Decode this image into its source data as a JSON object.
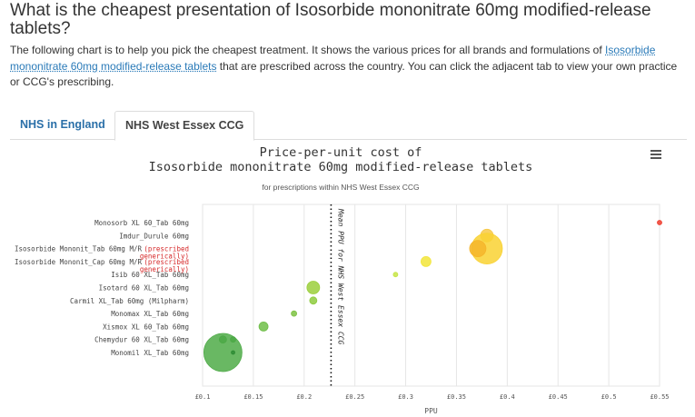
{
  "page": {
    "heading": "What is the cheapest presentation of Isosorbide mononitrate 60mg modified-release tablets?",
    "intro_before": "The following chart is to help you pick the cheapest treatment. It shows the various prices for all brands and formulations of ",
    "intro_link": "Isosorbide mononitrate 60mg modified-release tablets",
    "intro_after": " that are prescribed across the country. You can click the adjacent tab to view your own practice or CCG's prescribing."
  },
  "tabs": [
    {
      "label": "NHS in England",
      "active": false
    },
    {
      "label": "NHS West Essex CCG",
      "active": true
    }
  ],
  "chart_data": {
    "type": "scatter",
    "title_line1": "Price-per-unit cost of",
    "title_line2": "Isosorbide mononitrate 60mg modified-release tablets",
    "subtitle": "for prescriptions within NHS West Essex CCG",
    "xlabel": "PPU",
    "mean_label": "Mean PPU for NHS West Essex CCG",
    "mean_ppu": 0.2265,
    "xlim": [
      0.1,
      0.55
    ],
    "xticks": [
      0.1,
      0.15,
      0.2,
      0.25,
      0.3,
      0.35,
      0.4,
      0.45,
      0.5,
      0.55
    ],
    "xtick_labels": [
      "£0.1",
      "£0.15",
      "£0.2",
      "£0.25",
      "£0.3",
      "£0.35",
      "£0.4",
      "£0.45",
      "£0.5",
      "£0.55"
    ],
    "categories": [
      {
        "label": "Monosorb XL 60_Tab 60mg",
        "generic_note": ""
      },
      {
        "label": "Imdur_Durule 60mg",
        "generic_note": ""
      },
      {
        "label": "Isosorbide Mononit_Tab 60mg M/R",
        "generic_note": "(prescribed generically)"
      },
      {
        "label": "Isosorbide Mononit_Cap 60mg M/R",
        "generic_note": "(prescribed generically)"
      },
      {
        "label": "Isib 60 XL_Tab 60mg",
        "generic_note": ""
      },
      {
        "label": "Isotard 60 XL_Tab 60mg",
        "generic_note": ""
      },
      {
        "label": "Carmil XL_Tab 60mg (Milpharm)",
        "generic_note": ""
      },
      {
        "label": "Monomax XL_Tab 60mg",
        "generic_note": ""
      },
      {
        "label": "Xismox XL 60_Tab 60mg",
        "generic_note": ""
      },
      {
        "label": "Chemydur 60 XL_Tab 60mg",
        "generic_note": ""
      },
      {
        "label": "Monomil XL_Tab 60mg",
        "generic_note": ""
      }
    ],
    "points": [
      {
        "category": 0,
        "ppu": 0.55,
        "size": 2.5,
        "color": "#ef3b2c"
      },
      {
        "category": 1,
        "ppu": 0.38,
        "size": 7,
        "color": "#f7c948"
      },
      {
        "category": 2,
        "ppu": 0.38,
        "size": 17,
        "color": "#f9d232"
      },
      {
        "category": 2,
        "ppu": 0.371,
        "size": 9,
        "color": "#f5b52a"
      },
      {
        "category": 3,
        "ppu": 0.32,
        "size": 5.5,
        "color": "#f2e53a"
      },
      {
        "category": 4,
        "ppu": 0.29,
        "size": 2.5,
        "color": "#c7e546"
      },
      {
        "category": 5,
        "ppu": 0.209,
        "size": 7,
        "color": "#9bcf3c"
      },
      {
        "category": 6,
        "ppu": 0.209,
        "size": 4,
        "color": "#8ecb3e"
      },
      {
        "category": 7,
        "ppu": 0.19,
        "size": 3,
        "color": "#7cc242"
      },
      {
        "category": 8,
        "ppu": 0.16,
        "size": 5,
        "color": "#6fbe48"
      },
      {
        "category": 9,
        "ppu": 0.13,
        "size": 3,
        "color": "#3d9b3d"
      },
      {
        "category": 9,
        "ppu": 0.12,
        "size": 4,
        "color": "#3a9a3a"
      },
      {
        "category": 10,
        "ppu": 0.12,
        "size": 21,
        "color": "#4fab48"
      },
      {
        "category": 10,
        "ppu": 0.13,
        "size": 2,
        "color": "#2e8b34"
      }
    ]
  },
  "chart_menu": {
    "icon": "hamburger-menu-icon"
  }
}
